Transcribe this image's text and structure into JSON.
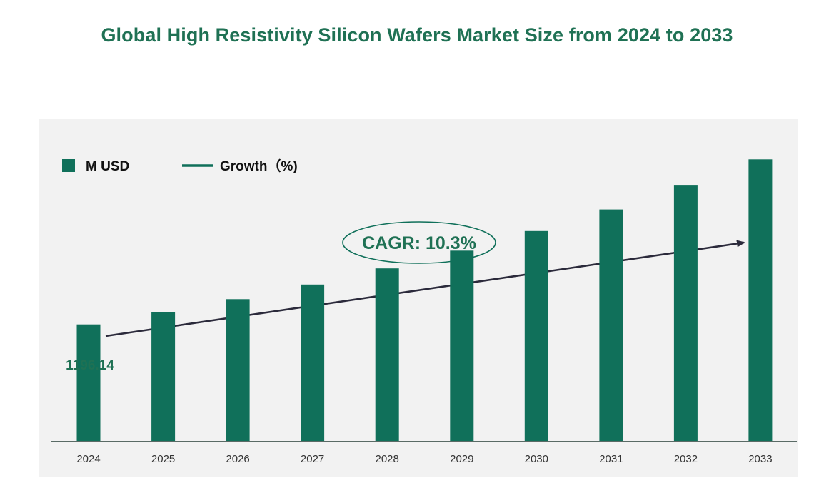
{
  "chart_data": {
    "type": "bar",
    "title": "Global High Resistivity Silicon Wafers Market Size from 2024 to 2033",
    "categories": [
      "2024",
      "2025",
      "2026",
      "2027",
      "2028",
      "2029",
      "2030",
      "2031",
      "2032",
      "2033"
    ],
    "series": [
      {
        "name": "M USD",
        "color": "#10705a",
        "values": [
          1196.14,
          1319.35,
          1455.24,
          1605.13,
          1770.46,
          1952.82,
          2153.96,
          2375.82,
          2620.53,
          2890.44
        ]
      }
    ],
    "legend": [
      {
        "label": "M USD",
        "shape": "square",
        "color": "#10705a"
      },
      {
        "label": "Growth（%)",
        "shape": "line",
        "color": "#10705a"
      }
    ],
    "data_labels": [
      {
        "category": "2024",
        "text": "1196.14"
      }
    ],
    "annotation": {
      "text": "CAGR: 10.3%",
      "shape": "ellipse-with-trend-arrow"
    },
    "ylim": [
      0,
      3200
    ],
    "xlabel": "",
    "ylabel": "",
    "grid": false,
    "legend_position": "top-left",
    "colors": {
      "bar": "#10705a",
      "accent_text": "#1f7154",
      "panel_bg": "#f2f2f2",
      "arrow": "#2b2a3b"
    }
  }
}
